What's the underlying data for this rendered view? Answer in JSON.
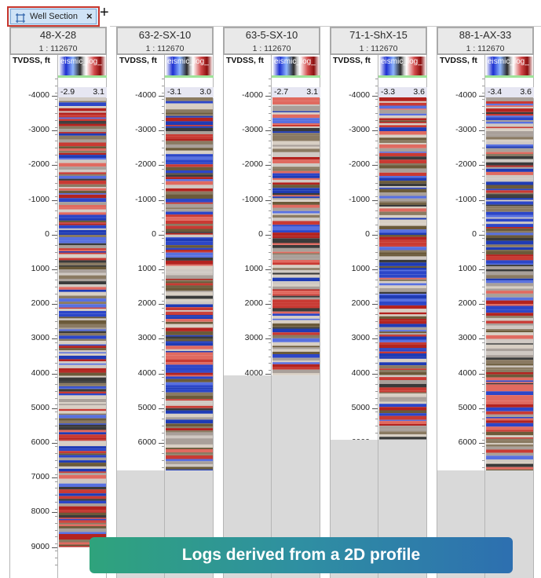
{
  "tab": {
    "label": "Well Section",
    "close": "×",
    "add": "+",
    "icon": "well-section-icon"
  },
  "depth_header": "TVDSS, ft",
  "depth_ticks": [
    "-4000",
    "-3000",
    "-2000",
    "-1000",
    "0",
    "1000",
    "2000",
    "3000",
    "4000",
    "5000",
    "6000",
    "7000",
    "8000",
    "9000"
  ],
  "wells": [
    {
      "name": "48-X-28",
      "scale": "1 : 112670",
      "log": "eismic_log_",
      "min": "-2.9",
      "max": "3.1",
      "data_end_depth": 9000
    },
    {
      "name": "63-2-SX-10",
      "scale": "1 : 112670",
      "log": "eismic_log_",
      "min": "-3.1",
      "max": "3.0",
      "data_end_depth": 6800
    },
    {
      "name": "63-5-SX-10",
      "scale": "1 : 112670",
      "log": "eismic_log_",
      "min": "-2.7",
      "max": "3.1",
      "data_end_depth": 4050
    },
    {
      "name": "71-1-ShX-15",
      "scale": "1 : 112670",
      "log": "eismic_log_",
      "min": "-3.3",
      "max": "3.6",
      "data_end_depth": 5900
    },
    {
      "name": "88-1-AX-33",
      "scale": "1 : 112670",
      "log": "eismic_log_",
      "min": "-3.4",
      "max": "3.6",
      "data_end_depth": 6800
    }
  ],
  "banner": "Logs derived from a 2D profile",
  "colors": {
    "tab_border": "#c8362d",
    "nodata": "#d9d9d9",
    "low": "#1f3bb5",
    "high": "#b3231f",
    "mid": "#8a7a62"
  }
}
